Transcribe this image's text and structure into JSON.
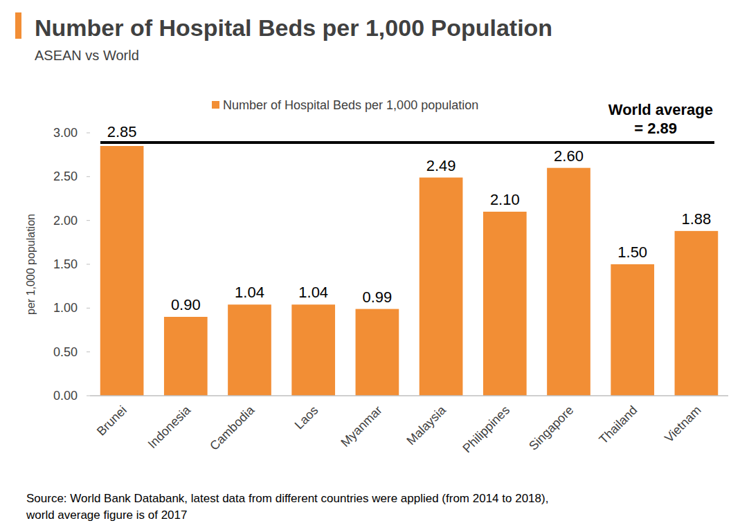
{
  "chart_data": {
    "type": "bar",
    "title": "Number of Hospital Beds per 1,000 Population",
    "subtitle": "ASEAN vs World",
    "y_label": "per 1,000 population",
    "categories": [
      "Brunei",
      "Indonesia",
      "Cambodia",
      "Laos",
      "Myanmar",
      "Malaysia",
      "Philippines",
      "Singapore",
      "Thailand",
      "Vietnam"
    ],
    "series": [
      {
        "name": "Number of Hospital Beds per 1,000 population",
        "color": "#f28e35",
        "values": [
          2.85,
          0.9,
          1.04,
          1.04,
          0.99,
          2.49,
          2.1,
          2.6,
          1.5,
          1.88
        ],
        "value_labels": [
          "2.85",
          "0.90",
          "1.04",
          "1.04",
          "0.99",
          "2.49",
          "2.10",
          "2.60",
          "1.50",
          "1.88"
        ]
      }
    ],
    "reference_line": {
      "value": 2.89,
      "label": [
        "World average",
        "= 2.89"
      ],
      "color": "#000000"
    },
    "ylim": [
      0,
      3
    ],
    "yticks": [
      {
        "value": 0,
        "label": "0.00"
      },
      {
        "value": 0.5,
        "label": "0.50"
      },
      {
        "value": 1,
        "label": "1.00"
      },
      {
        "value": 1.5,
        "label": "1.50"
      },
      {
        "value": 2,
        "label": "2.00"
      },
      {
        "value": 2.5,
        "label": "2.50"
      },
      {
        "value": 3,
        "label": "3.00"
      }
    ],
    "grid": false,
    "data_labels": true,
    "legend": "top",
    "source": [
      "Source: World Bank Databank, latest data from different countries were applied (from 2014 to 2018),",
      "world average figure is of 2017"
    ]
  }
}
